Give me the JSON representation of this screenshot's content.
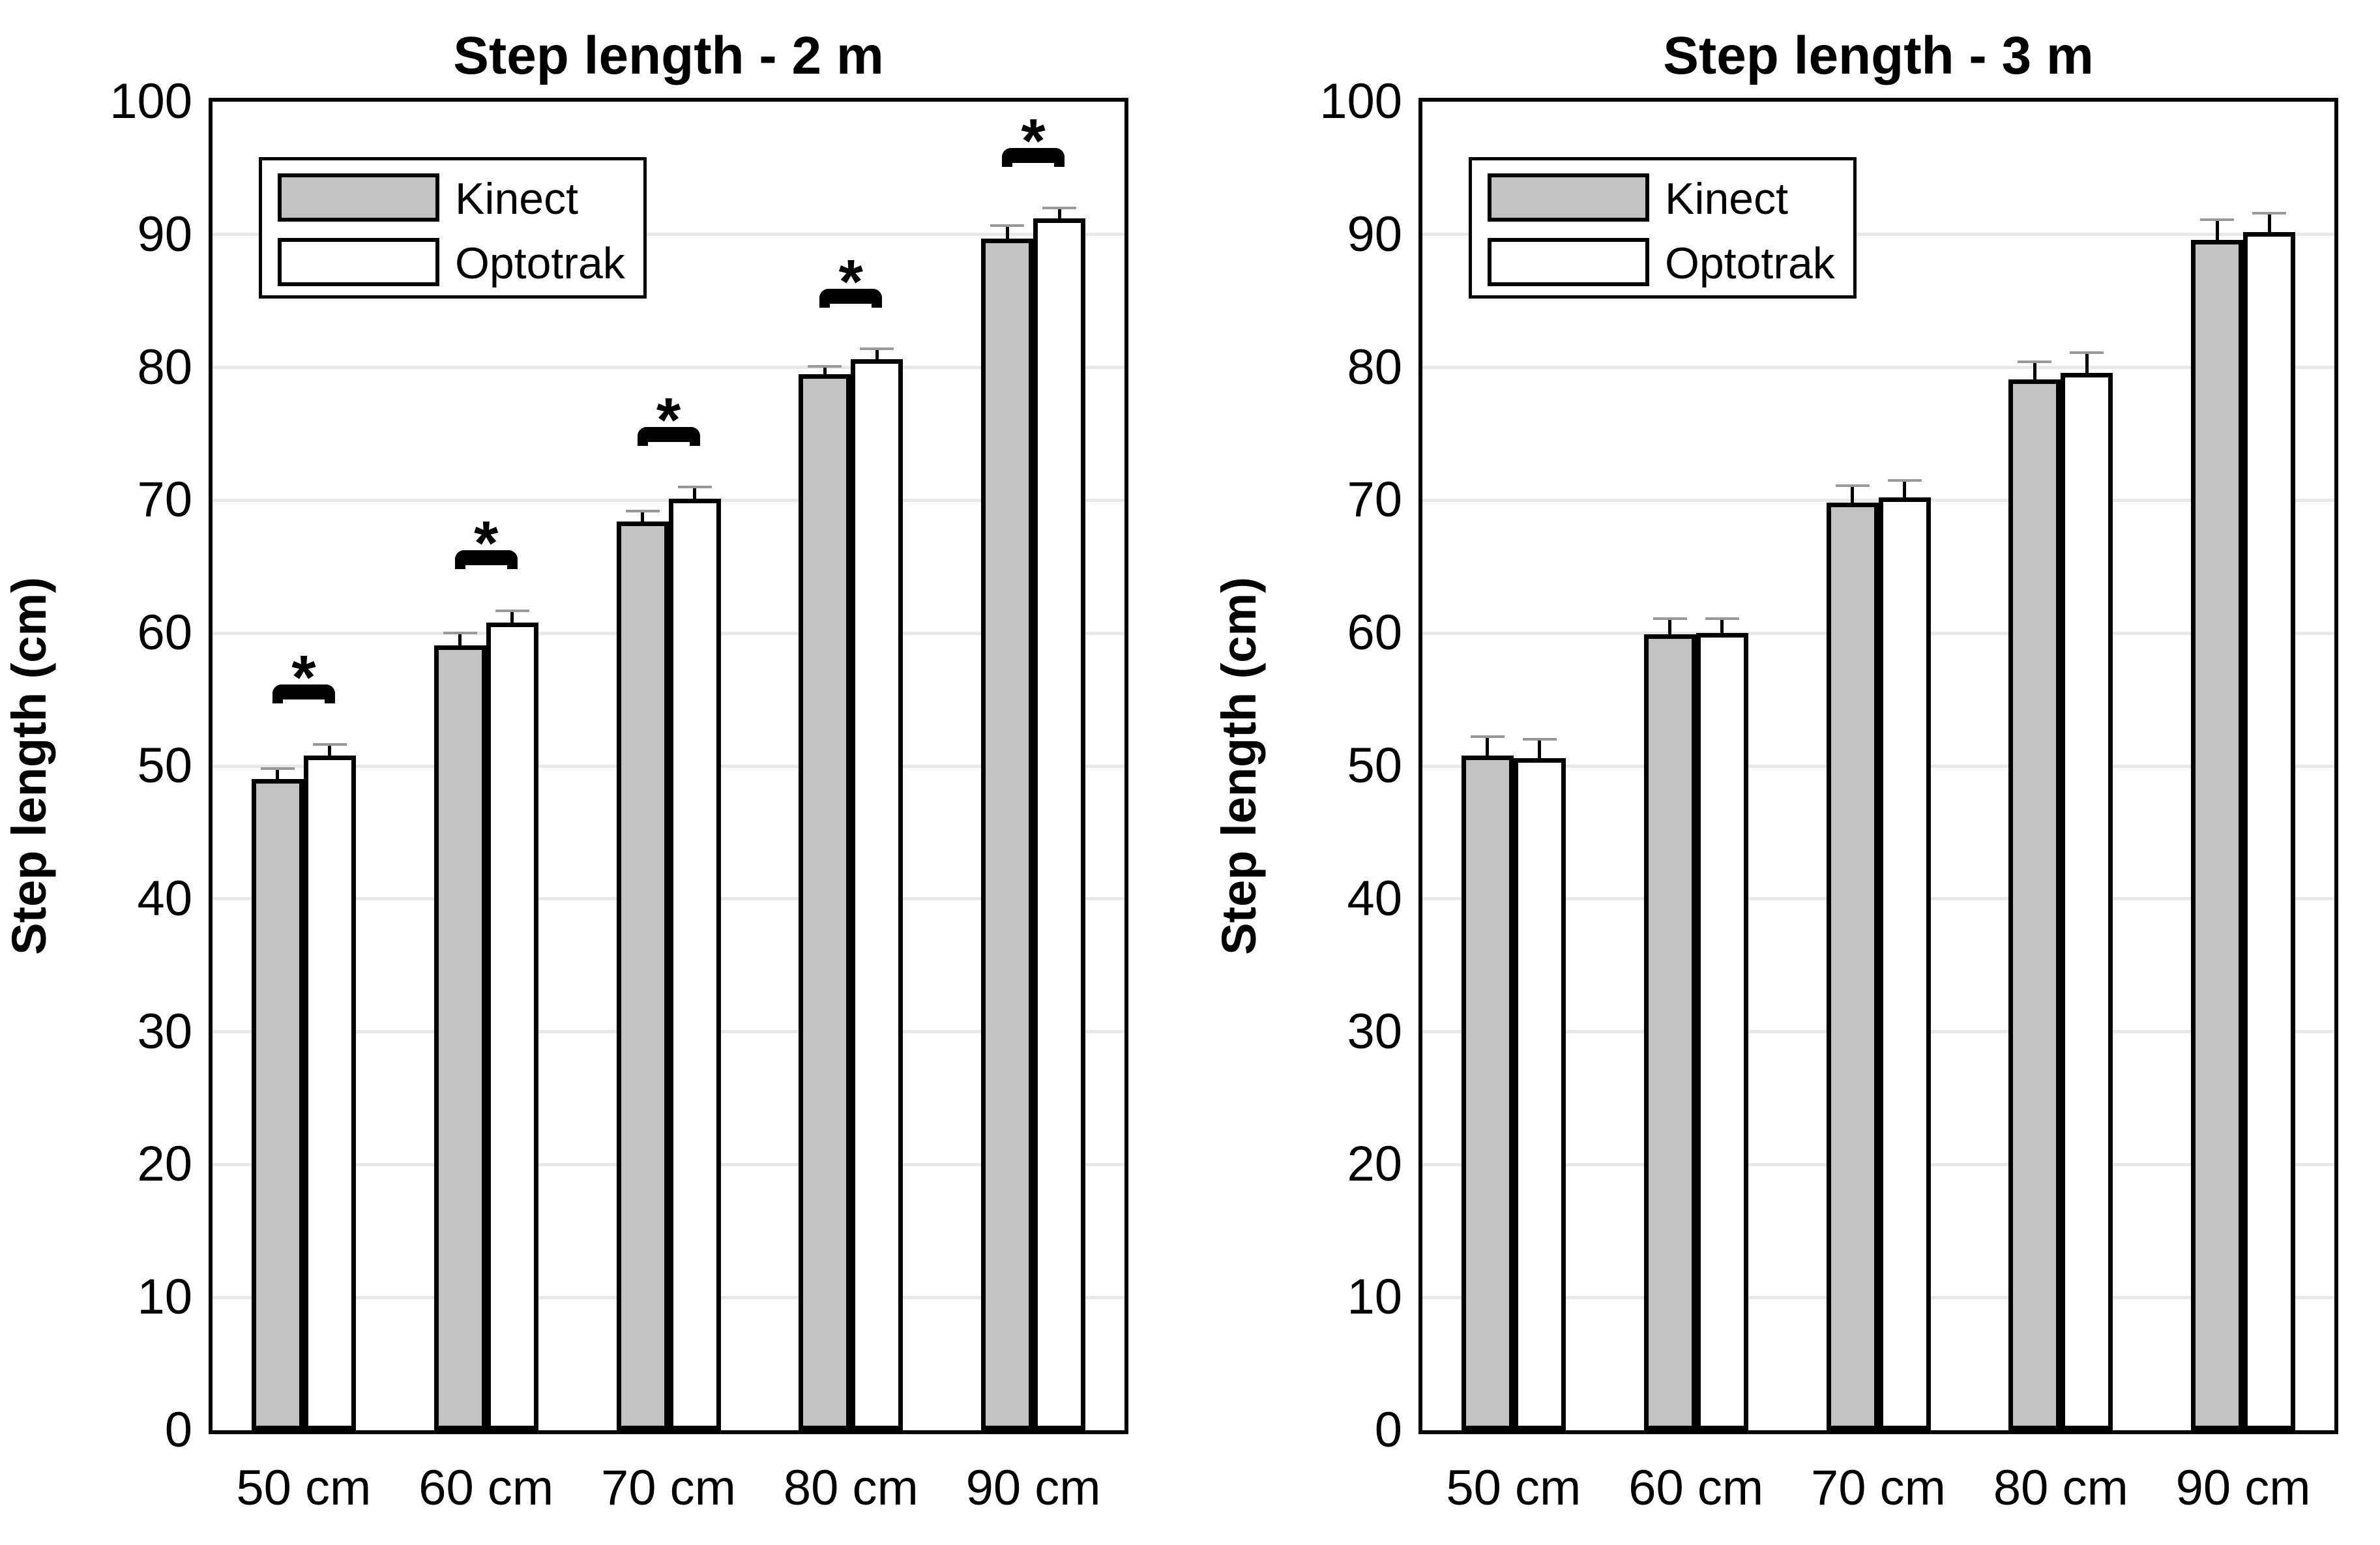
{
  "figure": {
    "background": "#ffffff",
    "colors": {
      "kinect_fill": "#c2c2c2",
      "optotrak_fill": "#ffffff",
      "bar_border": "#000000",
      "gridline": "#e8e8e8",
      "error_stem": "#000000",
      "error_cap": "#999999",
      "text": "#000000"
    }
  },
  "legend": {
    "items": [
      {
        "label": "Kinect",
        "swatch": "kinect_fill"
      },
      {
        "label": "Optotrak",
        "swatch": "optotrak_fill"
      }
    ]
  },
  "chart_data": [
    {
      "type": "bar",
      "title": "Step length - 2 m",
      "xlabel": "",
      "ylabel": "Step length (cm)",
      "categories": [
        "50 cm",
        "60 cm",
        "70 cm",
        "80 cm",
        "90 cm"
      ],
      "series": [
        {
          "name": "Kinect",
          "values": [
            49.0,
            59.1,
            68.4,
            79.5,
            89.7
          ],
          "errors": [
            0.8,
            0.9,
            0.8,
            0.6,
            1.0
          ]
        },
        {
          "name": "Optotrak",
          "values": [
            50.8,
            60.8,
            70.1,
            80.6,
            91.2
          ],
          "errors": [
            0.8,
            0.9,
            0.9,
            0.8,
            0.8
          ]
        }
      ],
      "ylim": [
        0,
        100
      ],
      "yticks": [
        0,
        10,
        20,
        30,
        40,
        50,
        60,
        70,
        80,
        90,
        100
      ],
      "grid": true,
      "legend_position": "top-left",
      "significance": [
        true,
        true,
        true,
        true,
        true
      ],
      "sig_symbol": "*"
    },
    {
      "type": "bar",
      "title": "Step length - 3 m",
      "xlabel": "",
      "ylabel": "Step length (cm)",
      "categories": [
        "50 cm",
        "60 cm",
        "70 cm",
        "80 cm",
        "90 cm"
      ],
      "series": [
        {
          "name": "Kinect",
          "values": [
            50.8,
            59.9,
            69.8,
            79.1,
            89.6
          ],
          "errors": [
            1.4,
            1.2,
            1.3,
            1.3,
            1.5
          ]
        },
        {
          "name": "Optotrak",
          "values": [
            50.6,
            60.0,
            70.2,
            79.6,
            90.2
          ],
          "errors": [
            1.4,
            1.1,
            1.3,
            1.5,
            1.4
          ]
        }
      ],
      "ylim": [
        0,
        100
      ],
      "yticks": [
        0,
        10,
        20,
        30,
        40,
        50,
        60,
        70,
        80,
        90,
        100
      ],
      "grid": true,
      "legend_position": "top-left",
      "significance": [
        false,
        false,
        false,
        false,
        false
      ],
      "sig_symbol": "*"
    }
  ]
}
